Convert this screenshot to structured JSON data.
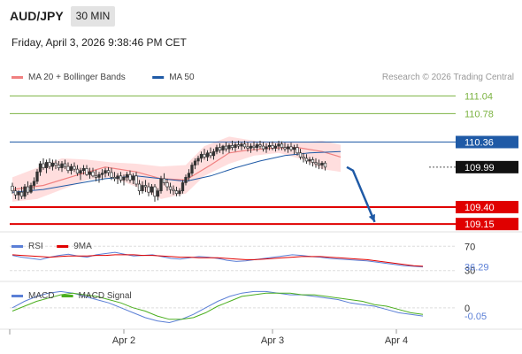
{
  "header": {
    "pair": "AUD/JPY",
    "interval": "30 MIN",
    "datetime": "Friday, April 3, 2026 9:38:46 PM CET"
  },
  "colors": {
    "up": "#333333",
    "down": "#ffffff",
    "wick": "#333333",
    "ma20": "#f08080",
    "bands": "#ffd6d6",
    "ma50": "#1f5aa6",
    "target": "#7cb342",
    "pivot": "#1f5aa6",
    "support": "#e00000",
    "arrow": "#1f5aa6",
    "rsi": "#5b7fd6",
    "rsi_ma": "#e00000",
    "macd": "#5b7fd6",
    "macd_signal": "#4caf20"
  },
  "chart_data": [
    {
      "type": "candlestick",
      "legend": [
        "MA 20 + Bollinger Bands",
        "MA 50"
      ],
      "watermark": "Research © 2026 Trading Central",
      "ylim": [
        109.1,
        111.15
      ],
      "x_ticks": [
        {
          "label": "Apr 2",
          "index": 36
        },
        {
          "label": "Apr 3",
          "index": 84
        },
        {
          "label": "Apr 4",
          "index": 124
        }
      ],
      "candles": [
        [
          109.71,
          109.76,
          109.6,
          109.64
        ],
        [
          109.64,
          109.7,
          109.52,
          109.58
        ],
        [
          109.58,
          109.65,
          109.5,
          109.62
        ],
        [
          109.62,
          109.7,
          109.52,
          109.56
        ],
        [
          109.56,
          109.74,
          109.52,
          109.7
        ],
        [
          109.7,
          109.78,
          109.58,
          109.62
        ],
        [
          109.62,
          109.76,
          109.6,
          109.72
        ],
        [
          109.72,
          109.84,
          109.66,
          109.78
        ],
        [
          109.78,
          109.96,
          109.74,
          109.92
        ],
        [
          109.92,
          110.08,
          109.86,
          110.04
        ],
        [
          110.04,
          110.12,
          109.95,
          109.98
        ],
        [
          109.98,
          110.1,
          109.9,
          110.06
        ],
        [
          110.06,
          110.12,
          109.96,
          110.0
        ],
        [
          110.0,
          110.1,
          109.94,
          110.05
        ],
        [
          110.05,
          110.1,
          109.96,
          110.02
        ],
        [
          110.02,
          110.08,
          109.94,
          109.98
        ],
        [
          109.98,
          110.08,
          109.92,
          110.04
        ],
        [
          110.04,
          110.1,
          109.96,
          110.0
        ],
        [
          110.0,
          110.06,
          109.9,
          109.94
        ],
        [
          109.94,
          110.04,
          109.88,
          110.0
        ],
        [
          110.0,
          110.06,
          109.92,
          109.96
        ],
        [
          109.96,
          110.02,
          109.86,
          109.9
        ],
        [
          109.9,
          109.98,
          109.8,
          109.94
        ],
        [
          109.94,
          110.02,
          109.88,
          109.97
        ],
        [
          109.97,
          110.02,
          109.86,
          109.88
        ],
        [
          109.88,
          109.98,
          109.82,
          109.92
        ],
        [
          109.92,
          109.98,
          109.84,
          109.86
        ],
        [
          109.86,
          109.95,
          109.78,
          109.84
        ],
        [
          109.84,
          109.92,
          109.76,
          109.88
        ],
        [
          109.88,
          109.96,
          109.8,
          109.9
        ],
        [
          109.9,
          109.98,
          109.84,
          109.94
        ],
        [
          109.94,
          109.99,
          109.86,
          109.91
        ],
        [
          109.91,
          109.98,
          109.8,
          109.84
        ],
        [
          109.84,
          109.92,
          109.78,
          109.82
        ],
        [
          109.82,
          109.9,
          109.74,
          109.86
        ],
        [
          109.86,
          109.92,
          109.76,
          109.8
        ],
        [
          109.8,
          109.88,
          109.72,
          109.84
        ],
        [
          109.84,
          109.92,
          109.78,
          109.88
        ],
        [
          109.88,
          109.94,
          109.76,
          109.8
        ],
        [
          109.8,
          109.9,
          109.74,
          109.86
        ],
        [
          109.86,
          109.92,
          109.7,
          109.74
        ],
        [
          109.74,
          109.8,
          109.58,
          109.64
        ],
        [
          109.64,
          109.78,
          109.6,
          109.72
        ],
        [
          109.72,
          109.8,
          109.62,
          109.7
        ],
        [
          109.7,
          109.76,
          109.56,
          109.62
        ],
        [
          109.62,
          109.74,
          109.58,
          109.7
        ],
        [
          109.7,
          109.74,
          109.48,
          109.56
        ],
        [
          109.56,
          109.68,
          109.5,
          109.64
        ],
        [
          109.64,
          109.86,
          109.6,
          109.82
        ],
        [
          109.82,
          109.9,
          109.72,
          109.76
        ],
        [
          109.76,
          109.82,
          109.64,
          109.7
        ],
        [
          109.7,
          109.76,
          109.6,
          109.66
        ],
        [
          109.66,
          109.72,
          109.58,
          109.64
        ],
        [
          109.64,
          109.7,
          109.56,
          109.6
        ],
        [
          109.6,
          109.68,
          109.56,
          109.64
        ],
        [
          109.64,
          109.8,
          109.6,
          109.76
        ],
        [
          109.76,
          109.88,
          109.72,
          109.84
        ],
        [
          109.84,
          109.96,
          109.78,
          109.9
        ],
        [
          109.9,
          110.06,
          109.86,
          110.02
        ],
        [
          110.02,
          110.12,
          109.96,
          110.08
        ],
        [
          110.08,
          110.16,
          110.02,
          110.12
        ],
        [
          110.12,
          110.22,
          110.06,
          110.18
        ],
        [
          110.18,
          110.26,
          110.1,
          110.14
        ],
        [
          110.14,
          110.24,
          110.08,
          110.2
        ],
        [
          110.2,
          110.28,
          110.12,
          110.16
        ],
        [
          110.16,
          110.26,
          110.1,
          110.22
        ],
        [
          110.22,
          110.32,
          110.18,
          110.28
        ],
        [
          110.28,
          110.34,
          110.2,
          110.24
        ],
        [
          110.24,
          110.32,
          110.18,
          110.3
        ],
        [
          110.3,
          110.36,
          110.22,
          110.26
        ],
        [
          110.26,
          110.34,
          110.2,
          110.31
        ],
        [
          110.31,
          110.38,
          110.24,
          110.28
        ],
        [
          110.28,
          110.36,
          110.22,
          110.32
        ],
        [
          110.32,
          110.38,
          110.26,
          110.3
        ],
        [
          110.3,
          110.36,
          110.24,
          110.33
        ],
        [
          110.33,
          110.38,
          110.26,
          110.29
        ],
        [
          110.29,
          110.36,
          110.22,
          110.27
        ],
        [
          110.27,
          110.34,
          110.2,
          110.3
        ],
        [
          110.3,
          110.37,
          110.24,
          110.28
        ],
        [
          110.28,
          110.35,
          110.22,
          110.32
        ],
        [
          110.32,
          110.38,
          110.26,
          110.3
        ],
        [
          110.3,
          110.36,
          110.22,
          110.26
        ],
        [
          110.26,
          110.34,
          110.2,
          110.29
        ],
        [
          110.29,
          110.36,
          110.24,
          110.31
        ],
        [
          110.31,
          110.37,
          110.24,
          110.27
        ],
        [
          110.27,
          110.34,
          110.22,
          110.3
        ],
        [
          110.3,
          110.38,
          110.24,
          110.33
        ],
        [
          110.33,
          110.37,
          110.24,
          110.28
        ],
        [
          110.28,
          110.35,
          110.22,
          110.26
        ],
        [
          110.26,
          110.33,
          110.2,
          110.29
        ],
        [
          110.29,
          110.35,
          110.22,
          110.25
        ],
        [
          110.25,
          110.32,
          110.18,
          110.28
        ],
        [
          110.28,
          110.33,
          110.16,
          110.2
        ],
        [
          110.2,
          110.26,
          110.1,
          110.14
        ],
        [
          110.14,
          110.2,
          110.06,
          110.12
        ],
        [
          110.12,
          110.18,
          110.04,
          110.08
        ],
        [
          110.08,
          110.14,
          110.02,
          110.1
        ],
        [
          110.1,
          110.14,
          110.0,
          110.06
        ],
        [
          110.06,
          110.12,
          109.98,
          110.04
        ],
        [
          110.04,
          110.1,
          109.96,
          110.02
        ],
        [
          110.02,
          110.08,
          109.96,
          110.05
        ],
        [
          110.05,
          110.08,
          109.94,
          109.99
        ]
      ],
      "ma20": [
        [
          0,
          109.66
        ],
        [
          10,
          109.72
        ],
        [
          20,
          109.86
        ],
        [
          30,
          109.99
        ],
        [
          40,
          109.92
        ],
        [
          48,
          109.82
        ],
        [
          56,
          109.8
        ],
        [
          64,
          110.02
        ],
        [
          70,
          110.2
        ],
        [
          76,
          110.24
        ],
        [
          84,
          110.27
        ],
        [
          92,
          110.28
        ],
        [
          100,
          110.22
        ],
        [
          106,
          110.14
        ]
      ],
      "band_upper": [
        [
          0,
          109.84
        ],
        [
          8,
          109.98
        ],
        [
          16,
          110.12
        ],
        [
          24,
          110.1
        ],
        [
          32,
          110.06
        ],
        [
          40,
          110.04
        ],
        [
          48,
          110.0
        ],
        [
          56,
          110.02
        ],
        [
          62,
          110.3
        ],
        [
          70,
          110.44
        ],
        [
          78,
          110.38
        ],
        [
          86,
          110.36
        ],
        [
          94,
          110.36
        ],
        [
          100,
          110.38
        ],
        [
          106,
          110.32
        ]
      ],
      "band_lower": [
        [
          0,
          109.48
        ],
        [
          8,
          109.52
        ],
        [
          16,
          109.66
        ],
        [
          24,
          109.8
        ],
        [
          32,
          109.84
        ],
        [
          40,
          109.7
        ],
        [
          48,
          109.52
        ],
        [
          56,
          109.6
        ],
        [
          62,
          109.86
        ],
        [
          70,
          110.04
        ],
        [
          78,
          110.16
        ],
        [
          86,
          110.2
        ],
        [
          94,
          110.1
        ],
        [
          100,
          109.96
        ],
        [
          106,
          109.92
        ]
      ],
      "ma50": [
        [
          0,
          109.62
        ],
        [
          10,
          109.66
        ],
        [
          20,
          109.74
        ],
        [
          30,
          109.82
        ],
        [
          40,
          109.86
        ],
        [
          48,
          109.82
        ],
        [
          56,
          109.78
        ],
        [
          64,
          109.86
        ],
        [
          72,
          109.98
        ],
        [
          80,
          110.08
        ],
        [
          88,
          110.16
        ],
        [
          96,
          110.2
        ],
        [
          106,
          110.22
        ]
      ],
      "levels": [
        {
          "label": "111.04",
          "value": 111.04,
          "kind": "target"
        },
        {
          "label": "110.78",
          "value": 110.78,
          "kind": "target"
        },
        {
          "label": "110.36",
          "value": 110.36,
          "kind": "pivot"
        },
        {
          "label": "109.99",
          "value": 109.99,
          "kind": "last"
        },
        {
          "label": "109.40",
          "value": 109.4,
          "kind": "support"
        },
        {
          "label": "109.15",
          "value": 109.15,
          "kind": "support"
        }
      ],
      "projection": [
        [
          108,
          109.99
        ],
        [
          110,
          109.94
        ],
        [
          117,
          109.18
        ]
      ]
    },
    {
      "type": "line",
      "legend": [
        "RSI",
        "9MA"
      ],
      "ylim": [
        15,
        85
      ],
      "y_ticks": [
        {
          "label": "70",
          "value": 70
        },
        {
          "label": "30",
          "value": 30
        }
      ],
      "last_value": "36.29",
      "series": [
        {
          "name": "RSI",
          "values": [
            55,
            52,
            50,
            48,
            52,
            55,
            57,
            54,
            52,
            56,
            58,
            60,
            57,
            54,
            55,
            56,
            53,
            50,
            49,
            51,
            53,
            52,
            50,
            47,
            45,
            46,
            48,
            50,
            52,
            54,
            56,
            55,
            53,
            52,
            50,
            49,
            48,
            47,
            46,
            44,
            42,
            40,
            38,
            37,
            36
          ]
        },
        {
          "name": "9MA",
          "values": [
            56,
            55,
            54,
            53,
            52,
            53,
            54,
            54,
            54,
            55,
            55,
            56,
            56,
            56,
            55,
            55,
            54,
            53,
            52,
            52,
            51,
            51,
            51,
            50,
            49,
            48,
            48,
            49,
            50,
            51,
            52,
            53,
            53,
            53,
            52,
            51,
            50,
            49,
            48,
            46,
            44,
            42,
            40,
            38,
            37
          ]
        }
      ]
    },
    {
      "type": "line",
      "legend": [
        "MACD",
        "MACD Signal"
      ],
      "ylim": [
        -0.12,
        0.14
      ],
      "y_ticks": [
        {
          "label": "0",
          "value": 0
        }
      ],
      "last_value": "-0.05",
      "series": [
        {
          "name": "MACD",
          "values": [
            0.0,
            0.04,
            0.07,
            0.09,
            0.1,
            0.09,
            0.07,
            0.05,
            0.03,
            0.0,
            -0.03,
            -0.06,
            -0.08,
            -0.09,
            -0.07,
            -0.04,
            0.0,
            0.04,
            0.07,
            0.09,
            0.1,
            0.1,
            0.09,
            0.08,
            0.08,
            0.07,
            0.06,
            0.05,
            0.03,
            0.02,
            0.01,
            -0.01,
            -0.03,
            -0.04,
            -0.05
          ]
        },
        {
          "name": "MACD Signal",
          "values": [
            -0.02,
            0.01,
            0.04,
            0.06,
            0.08,
            0.09,
            0.08,
            0.07,
            0.05,
            0.03,
            0.0,
            -0.02,
            -0.05,
            -0.07,
            -0.07,
            -0.06,
            -0.03,
            0.01,
            0.04,
            0.07,
            0.08,
            0.09,
            0.09,
            0.09,
            0.08,
            0.08,
            0.07,
            0.06,
            0.05,
            0.04,
            0.02,
            0.01,
            -0.01,
            -0.03,
            -0.04
          ]
        }
      ]
    }
  ]
}
